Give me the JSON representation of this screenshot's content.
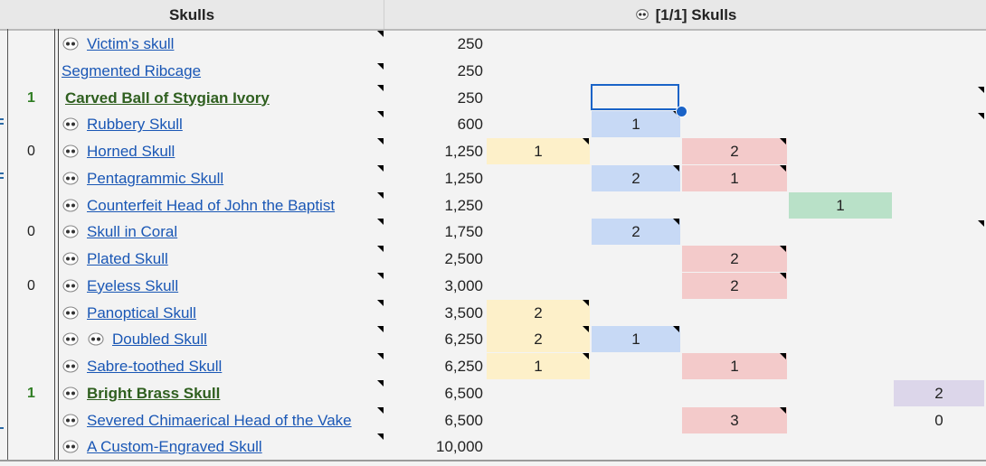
{
  "header": {
    "left_title": "Skulls",
    "right_title": "[1/1] Skulls",
    "right_icon": "skull-icon"
  },
  "colors": {
    "yellow": "#fdf0c9",
    "blue": "#c7d9f5",
    "red": "#f3caca",
    "green": "#b9e1c8",
    "purple": "#dcd6ea",
    "link": "#1a57b5",
    "bold_link": "#2f5f1f",
    "count_green": "#2f7d23"
  },
  "rows": [
    {
      "count": "",
      "name": "Victim's skull",
      "icons": 1,
      "cost": "250"
    },
    {
      "count": "",
      "name": "Segmented Ribcage",
      "icons": 0,
      "cost": "250"
    },
    {
      "count": "1",
      "name": "Carved Ball of Stygian Ivory",
      "icons": 0,
      "cost": "250",
      "bold": true
    },
    {
      "count": "",
      "name": "Rubbery Skull",
      "icons": 1,
      "cost": "600"
    },
    {
      "count": "0",
      "name": "Horned Skull",
      "icons": 1,
      "cost": "1,250"
    },
    {
      "count": "",
      "name": "Pentagrammic Skull",
      "icons": 1,
      "cost": "1,250"
    },
    {
      "count": "",
      "name": "Counterfeit Head of John the Baptist",
      "icons": 1,
      "cost": "1,250"
    },
    {
      "count": "0",
      "name": "Skull in Coral",
      "icons": 1,
      "cost": "1,750"
    },
    {
      "count": "",
      "name": "Plated Skull",
      "icons": 1,
      "cost": "2,500"
    },
    {
      "count": "0",
      "name": "Eyeless Skull",
      "icons": 1,
      "cost": "3,000"
    },
    {
      "count": "",
      "name": "Panoptical Skull",
      "icons": 1,
      "cost": "3,500"
    },
    {
      "count": "",
      "name": "Doubled Skull",
      "icons": 2,
      "cost": "6,250"
    },
    {
      "count": "",
      "name": "Sabre-toothed Skull",
      "icons": 1,
      "cost": "6,250"
    },
    {
      "count": "1",
      "name": "Bright Brass Skull",
      "icons": 1,
      "cost": "6,500",
      "bold": true
    },
    {
      "count": "",
      "name": "Severed Chimaerical Head of the Vake",
      "icons": 1,
      "cost": "6,500"
    },
    {
      "count": "",
      "name": "A Custom-Engraved Skull",
      "icons": 1,
      "cost": "10,000"
    }
  ],
  "cells": [
    {
      "row": 3,
      "col": 1,
      "value": "1",
      "color": "b"
    },
    {
      "row": 4,
      "col": 0,
      "value": "1",
      "color": "y"
    },
    {
      "row": 4,
      "col": 2,
      "value": "2",
      "color": "r"
    },
    {
      "row": 5,
      "col": 1,
      "value": "2",
      "color": "b"
    },
    {
      "row": 5,
      "col": 2,
      "value": "1",
      "color": "r"
    },
    {
      "row": 6,
      "col": 3,
      "value": "1",
      "color": "g"
    },
    {
      "row": 7,
      "col": 1,
      "value": "2",
      "color": "b"
    },
    {
      "row": 8,
      "col": 2,
      "value": "2",
      "color": "r"
    },
    {
      "row": 9,
      "col": 2,
      "value": "2",
      "color": "r"
    },
    {
      "row": 10,
      "col": 0,
      "value": "2",
      "color": "y"
    },
    {
      "row": 11,
      "col": 0,
      "value": "2",
      "color": "y"
    },
    {
      "row": 11,
      "col": 1,
      "value": "1",
      "color": "b"
    },
    {
      "row": 12,
      "col": 0,
      "value": "1",
      "color": "y"
    },
    {
      "row": 12,
      "col": 2,
      "value": "1",
      "color": "r"
    },
    {
      "row": 13,
      "col": 4,
      "value": "2",
      "color": "p"
    },
    {
      "row": 14,
      "col": 2,
      "value": "3",
      "color": "r"
    },
    {
      "row": 14,
      "col": 4,
      "value": "0",
      "color": ""
    }
  ],
  "selection": {
    "row": 2,
    "col": 1
  }
}
